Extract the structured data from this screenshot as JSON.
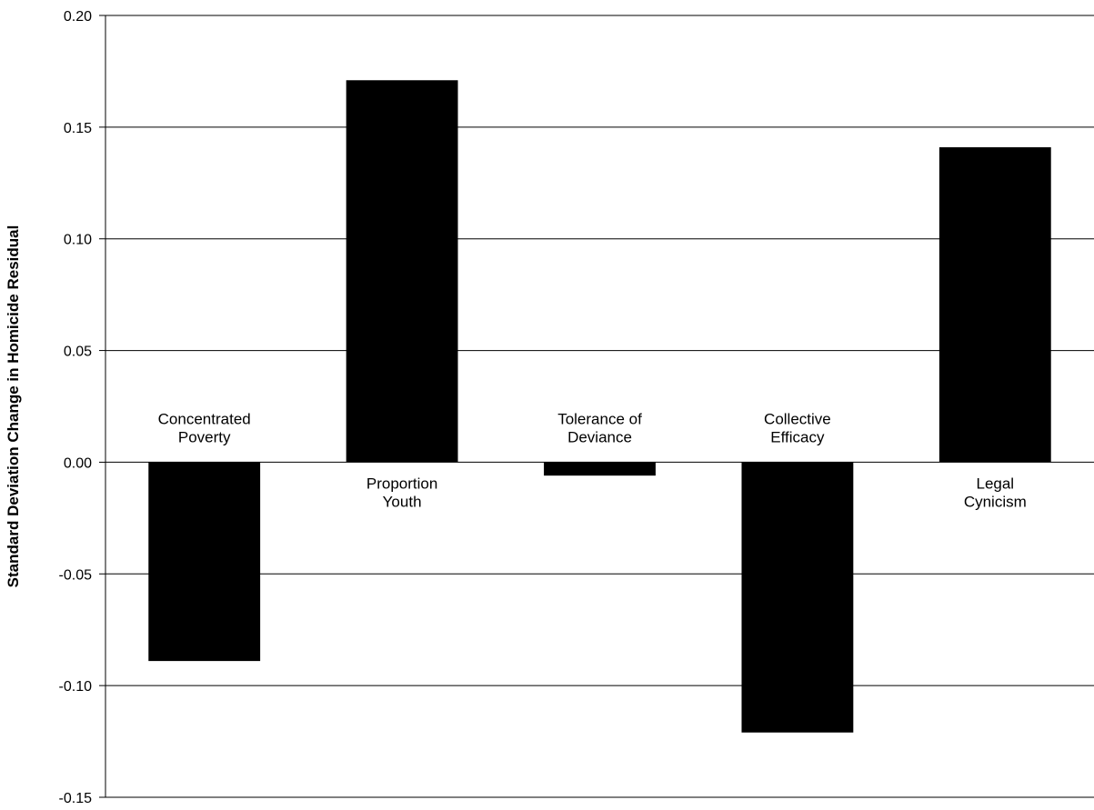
{
  "chart_data": {
    "type": "bar",
    "title": "",
    "xlabel": "",
    "ylabel": "Standard Deviation Change in Homicide Residual",
    "ylim": [
      -0.15,
      0.2
    ],
    "yticks": [
      "0.20",
      "0.15",
      "0.10",
      "0.05",
      "0.00",
      "-0.05",
      "-0.10",
      "-0.15"
    ],
    "grid": true,
    "bar_color": "#000000",
    "categories": [
      [
        "Concentrated",
        "Poverty"
      ],
      [
        "Proportion",
        "Youth"
      ],
      [
        "Tolerance of",
        "Deviance"
      ],
      [
        "Collective",
        "Efficacy"
      ],
      [
        "Legal",
        "Cynicism"
      ]
    ],
    "values": [
      -0.089,
      0.171,
      -0.006,
      -0.121,
      0.141
    ]
  }
}
